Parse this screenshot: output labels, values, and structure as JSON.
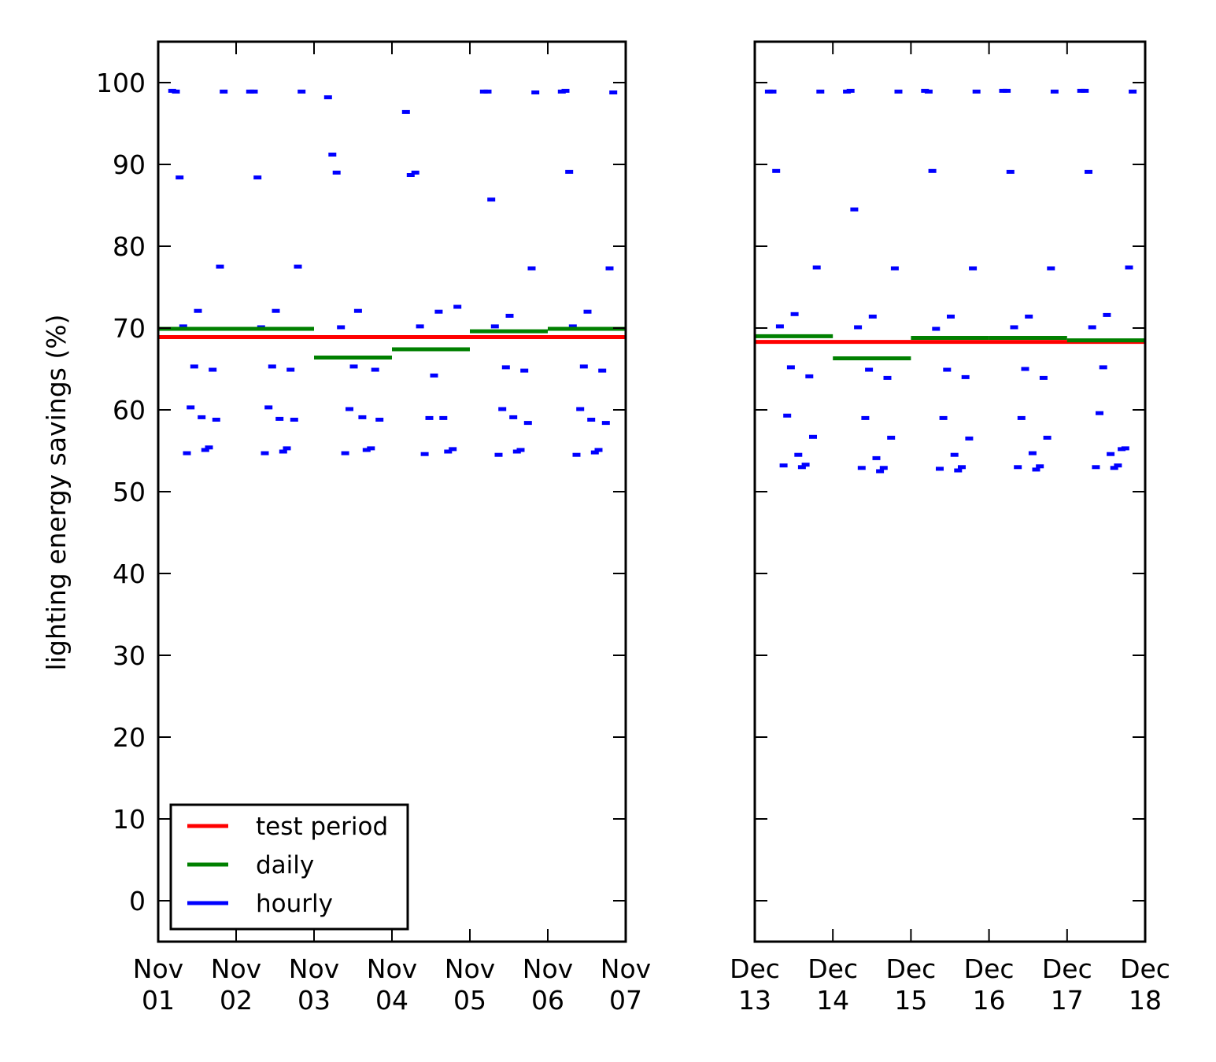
{
  "chart_data": {
    "type": "line",
    "ylabel": "lighting energy savings (%)",
    "ylim": [
      -5,
      105
    ],
    "yticks": [
      "0",
      "10",
      "20",
      "30",
      "40",
      "50",
      "60",
      "70",
      "80",
      "90",
      "100"
    ],
    "grid": false,
    "legend": {
      "placement": "lower-left",
      "entries": [
        {
          "label": "test period",
          "color": "#ff0000"
        },
        {
          "label": "daily",
          "color": "#008000"
        },
        {
          "label": "hourly",
          "color": "#0000ff"
        }
      ]
    },
    "colors": {
      "test_period": "#ff0000",
      "daily": "#008000",
      "hourly": "#0000ff"
    },
    "panels": [
      {
        "xlim": [
          "Nov 01",
          "Nov 07"
        ],
        "xticks": [
          {
            "line1": "Nov",
            "line2": "01"
          },
          {
            "line1": "Nov",
            "line2": "02"
          },
          {
            "line1": "Nov",
            "line2": "03"
          },
          {
            "line1": "Nov",
            "line2": "04"
          },
          {
            "line1": "Nov",
            "line2": "05"
          },
          {
            "line1": "Nov",
            "line2": "06"
          },
          {
            "line1": "Nov",
            "line2": "07"
          }
        ],
        "test_period": 68.9,
        "daily": [
          {
            "day": "Nov 01",
            "value": 69.9
          },
          {
            "day": "Nov 02",
            "value": 69.9
          },
          {
            "day": "Nov 03",
            "value": 66.4
          },
          {
            "day": "Nov 04",
            "value": 67.4
          },
          {
            "day": "Nov 05",
            "value": 69.6
          },
          {
            "day": "Nov 06",
            "value": 69.9
          }
        ],
        "hourly": [
          {
            "day": "Nov 01",
            "values": [
              99,
              98.9,
              88.4,
              70.2,
              54.7,
              60.3,
              65.3,
              72.1,
              59.1,
              55.1,
              55.4,
              64.9,
              58.8,
              77.5,
              98.9
            ]
          },
          {
            "day": "Nov 02",
            "values": [
              98.9,
              98.9,
              88.4,
              70.1,
              54.7,
              60.3,
              65.3,
              72.1,
              58.9,
              54.9,
              55.3,
              64.9,
              58.8,
              77.5,
              98.9
            ]
          },
          {
            "day": "Nov 03",
            "values": [
              98.2,
              91.2,
              89,
              70.1,
              54.7,
              60.1,
              65.3,
              72.1,
              59.1,
              55.1,
              55.3,
              64.9,
              58.8
            ]
          },
          {
            "day": "Nov 04",
            "values": [
              96.4,
              88.7,
              89,
              70.2,
              54.6,
              59,
              64.2,
              72,
              59,
              54.9,
              55.2,
              72.6
            ]
          },
          {
            "day": "Nov 05",
            "values": [
              98.9,
              98.9,
              85.7,
              70.2,
              54.5,
              60.1,
              65.2,
              71.5,
              59.1,
              54.9,
              55.1,
              64.8,
              58.4,
              77.3,
              98.8
            ]
          },
          {
            "day": "Nov 06",
            "values": [
              98.9,
              99,
              89.1,
              70.2,
              54.5,
              60.1,
              65.3,
              72,
              58.8,
              54.8,
              55.1,
              64.8,
              58.4,
              77.3,
              98.8
            ]
          }
        ]
      },
      {
        "xlim": [
          "Dec 13",
          "Dec 18"
        ],
        "xticks": [
          {
            "line1": "Dec",
            "line2": "13"
          },
          {
            "line1": "Dec",
            "line2": "14"
          },
          {
            "line1": "Dec",
            "line2": "15"
          },
          {
            "line1": "Dec",
            "line2": "16"
          },
          {
            "line1": "Dec",
            "line2": "17"
          },
          {
            "line1": "Dec",
            "line2": "18"
          }
        ],
        "test_period": 68.3,
        "daily": [
          {
            "day": "Dec 13",
            "value": 69
          },
          {
            "day": "Dec 14",
            "value": 66.3
          },
          {
            "day": "Dec 15",
            "value": 68.8
          },
          {
            "day": "Dec 16",
            "value": 68.8
          },
          {
            "day": "Dec 17",
            "value": 68.5
          }
        ],
        "hourly": [
          {
            "day": "Dec 13",
            "values": [
              98.9,
              98.9,
              89.2,
              70.2,
              53.2,
              59.3,
              65.2,
              71.7,
              54.5,
              53,
              53.3,
              64.1,
              56.7,
              77.4,
              98.9
            ]
          },
          {
            "day": "Dec 14",
            "values": [
              98.9,
              99,
              84.5,
              70.1,
              52.9,
              59,
              64.9,
              71.4,
              54.1,
              52.5,
              52.9,
              63.9,
              56.6,
              77.3,
              98.9
            ]
          },
          {
            "day": "Dec 15",
            "values": [
              99,
              98.9,
              89.2,
              69.9,
              52.8,
              59,
              64.9,
              71.4,
              54.5,
              52.6,
              53,
              64,
              56.5,
              77.3,
              98.9
            ]
          },
          {
            "day": "Dec 16",
            "values": [
              99,
              99,
              89.1,
              70.1,
              53,
              59,
              65,
              71.4,
              54.7,
              52.7,
              53.1,
              63.9,
              56.6,
              77.3,
              98.9
            ]
          },
          {
            "day": "Dec 17",
            "values": [
              99,
              99,
              89.1,
              70.1,
              53,
              59.6,
              65.2,
              71.6,
              54.6,
              52.9,
              53.2,
              55.2,
              55.3,
              77.4,
              98.9
            ]
          }
        ]
      }
    ]
  }
}
